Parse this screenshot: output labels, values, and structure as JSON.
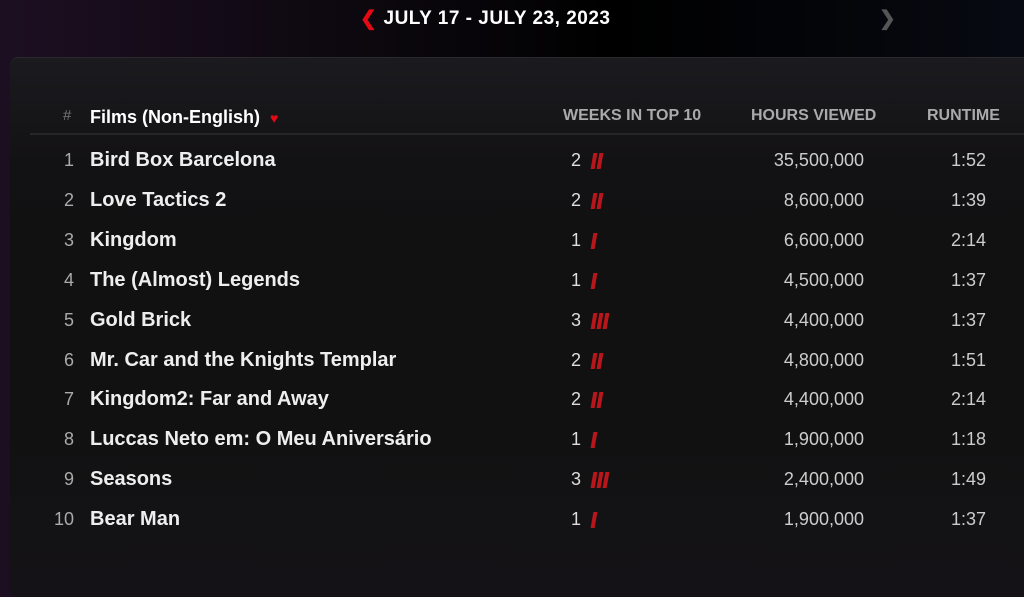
{
  "header": {
    "date_range": "JULY 17 - JULY 23, 2023",
    "prev_icon": "chevron-left-icon",
    "next_icon": "chevron-right-icon"
  },
  "table": {
    "hash": "#",
    "category": "Films (Non-English)",
    "category_icon": "chevron-down-icon",
    "col_weeks": "WEEKS IN TOP 10",
    "col_hours": "HOURS VIEWED",
    "col_runtime": "RUNTIME",
    "rows": [
      {
        "rank": "1",
        "title": "Bird Box Barcelona",
        "weeks": "2",
        "hours": "35,500,000",
        "runtime": "1:52"
      },
      {
        "rank": "2",
        "title": "Love Tactics 2",
        "weeks": "2",
        "hours": "8,600,000",
        "runtime": "1:39"
      },
      {
        "rank": "3",
        "title": "Kingdom",
        "weeks": "1",
        "hours": "6,600,000",
        "runtime": "2:14"
      },
      {
        "rank": "4",
        "title": "The (Almost) Legends",
        "weeks": "1",
        "hours": "4,500,000",
        "runtime": "1:37"
      },
      {
        "rank": "5",
        "title": "Gold Brick",
        "weeks": "3",
        "hours": "4,400,000",
        "runtime": "1:37"
      },
      {
        "rank": "6",
        "title": "Mr. Car and the Knights Templar",
        "weeks": "2",
        "hours": "4,800,000",
        "runtime": "1:51"
      },
      {
        "rank": "7",
        "title": "Kingdom2: Far and Away",
        "weeks": "2",
        "hours": "4,400,000",
        "runtime": "2:14"
      },
      {
        "rank": "8",
        "title": "Luccas Neto em: O Meu Aniversário",
        "weeks": "1",
        "hours": "1,900,000",
        "runtime": "1:18"
      },
      {
        "rank": "9",
        "title": "Seasons",
        "weeks": "3",
        "hours": "2,400,000",
        "runtime": "1:49"
      },
      {
        "rank": "10",
        "title": "Bear Man",
        "weeks": "1",
        "hours": "1,900,000",
        "runtime": "1:37"
      }
    ]
  },
  "colors": {
    "accent": "#e50914",
    "bar": "#b9161b"
  }
}
